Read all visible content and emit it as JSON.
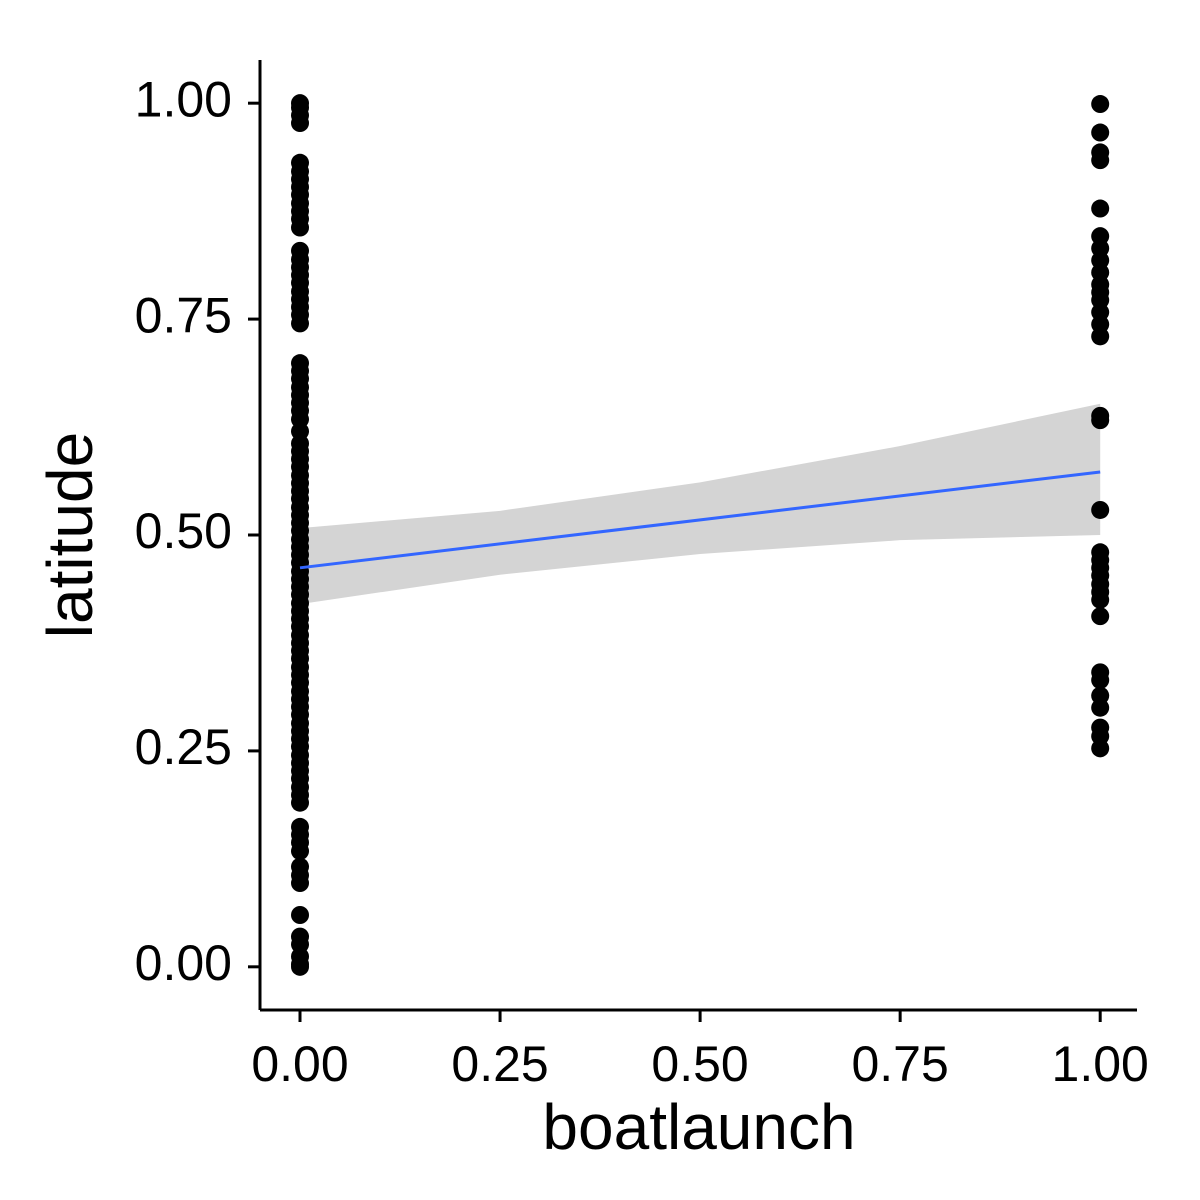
{
  "chart_data": {
    "type": "scatter",
    "x_label": "boatlaunch",
    "y_label": "latitude",
    "xlim": [
      -0.05,
      1.046
    ],
    "ylim": [
      -0.05,
      1.05
    ],
    "xticks": [
      {
        "value": 0,
        "label": "0.00"
      },
      {
        "value": 0.25,
        "label": "0.25"
      },
      {
        "value": 0.5,
        "label": "0.50"
      },
      {
        "value": 0.75,
        "label": "0.75"
      },
      {
        "value": 1,
        "label": "1.00"
      }
    ],
    "yticks": [
      {
        "value": 0,
        "label": "0.00"
      },
      {
        "value": 0.25,
        "label": "0.25"
      },
      {
        "value": 0.5,
        "label": "0.50"
      },
      {
        "value": 0.75,
        "label": "0.75"
      },
      {
        "value": 1,
        "label": "1.00"
      }
    ],
    "point_color": "#000000",
    "groups": [
      {
        "x": 0,
        "values": [
          1.0,
          0.995,
          0.986,
          0.977,
          0.931,
          0.921,
          0.912,
          0.903,
          0.894,
          0.884,
          0.875,
          0.866,
          0.856,
          0.829,
          0.819,
          0.81,
          0.801,
          0.792,
          0.782,
          0.773,
          0.764,
          0.755,
          0.745,
          0.699,
          0.69,
          0.681,
          0.671,
          0.662,
          0.653,
          0.644,
          0.634,
          0.62,
          0.606,
          0.597,
          0.588,
          0.579,
          0.569,
          0.56,
          0.551,
          0.542,
          0.532,
          0.523,
          0.514,
          0.505,
          0.495,
          0.486,
          0.477,
          0.468,
          0.458,
          0.449,
          0.44,
          0.431,
          0.421,
          0.412,
          0.403,
          0.394,
          0.384,
          0.375,
          0.366,
          0.357,
          0.347,
          0.338,
          0.329,
          0.319,
          0.31,
          0.301,
          0.292,
          0.282,
          0.273,
          0.264,
          0.255,
          0.245,
          0.236,
          0.227,
          0.218,
          0.208,
          0.199,
          0.19,
          0.162,
          0.153,
          0.144,
          0.134,
          0.116,
          0.106,
          0.097,
          0.06,
          0.035,
          0.026,
          0.012,
          0.003,
          0.0
        ]
      },
      {
        "x": 1,
        "values": [
          0.999,
          0.966,
          0.943,
          0.934,
          0.878,
          0.846,
          0.832,
          0.818,
          0.804,
          0.79,
          0.781,
          0.772,
          0.758,
          0.744,
          0.73,
          0.638,
          0.633,
          0.529,
          0.48,
          0.471,
          0.462,
          0.453,
          0.443,
          0.434,
          0.425,
          0.406,
          0.341,
          0.332,
          0.314,
          0.3,
          0.277,
          0.267,
          0.253
        ]
      }
    ],
    "band": {
      "x": [
        0,
        0.25,
        0.5,
        0.75,
        1
      ],
      "lower": [
        0.42,
        0.454,
        0.478,
        0.494,
        0.5
      ],
      "upper": [
        0.508,
        0.528,
        0.561,
        0.603,
        0.652
      ],
      "color": "#d4d4d4"
    },
    "fit": {
      "x": [
        0,
        1
      ],
      "y": [
        0.462,
        0.573
      ],
      "color": "#3366ff"
    }
  }
}
